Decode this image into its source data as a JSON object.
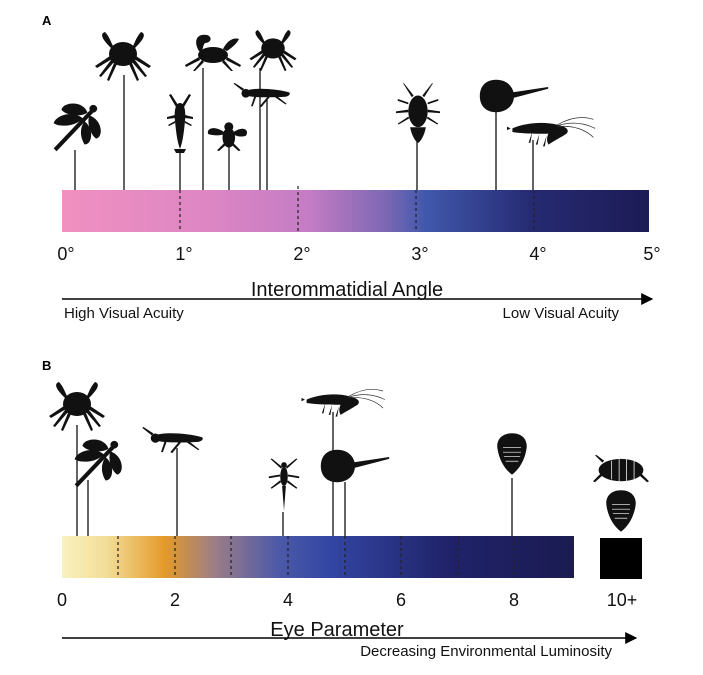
{
  "panel_a": {
    "label": "A",
    "axis_title": "Interommatidial Angle",
    "left_label": "High Visual Acuity",
    "right_label": "Low Visual Acuity",
    "ticks": [
      "0°",
      "1°",
      "2°",
      "3°",
      "4°",
      "5°"
    ],
    "colors": {
      "start": "#ef8fc0",
      "mid1": "#c979c4",
      "mid2": "#8a68b4",
      "mid3": "#3c58aa",
      "end": "#1a1a55"
    },
    "organisms": [
      {
        "icon": "dragonfly-icon",
        "value": 0.12
      },
      {
        "icon": "crab-icon",
        "value": 0.52
      },
      {
        "icon": "lobster-icon",
        "value": 0.96
      },
      {
        "icon": "fiddler-crab-icon",
        "value": 1.17
      },
      {
        "icon": "fly-icon",
        "value": 1.43
      },
      {
        "icon": "grasshopper-icon",
        "value": 1.7
      },
      {
        "icon": "crab-icon",
        "value": 1.65
      },
      {
        "icon": "spiny-lobster-icon",
        "value": 3.0
      },
      {
        "icon": "horseshoe-crab-icon",
        "value": 3.67
      },
      {
        "icon": "shrimp-icon",
        "value": 3.97
      }
    ]
  },
  "panel_b": {
    "label": "B",
    "axis_title": "Eye Parameter",
    "right_label": "Decreasing Environmental Luminosity",
    "ticks": [
      "0",
      "2",
      "4",
      "6",
      "8",
      "10+"
    ],
    "colors": {
      "start": "#f7f0b8",
      "mid1": "#e49a2a",
      "mid2": "#6a6aa0",
      "mid3": "#303c96",
      "end": "#181a50",
      "box": "#000000"
    },
    "organisms": [
      {
        "icon": "crab-icon",
        "value": 0.25
      },
      {
        "icon": "dragonfly-icon",
        "value": 0.45
      },
      {
        "icon": "grasshopper-icon",
        "value": 2.05
      },
      {
        "icon": "mayfly-icon",
        "value": 3.85
      },
      {
        "icon": "shrimp-icon",
        "value": 4.8
      },
      {
        "icon": "horseshoe-crab-icon",
        "value": 5.0
      },
      {
        "icon": "trilobite-icon",
        "value": 7.95
      },
      {
        "icon": "isopod-icon",
        "value": 10
      },
      {
        "icon": "trilobite-icon",
        "value": 10
      }
    ]
  }
}
